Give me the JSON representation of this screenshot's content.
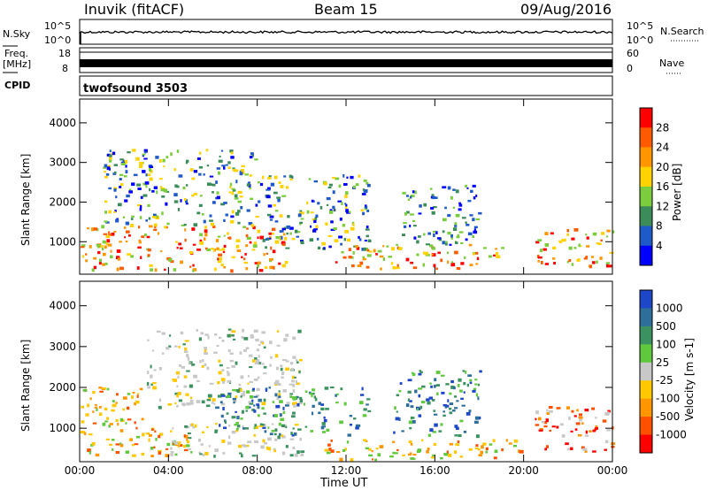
{
  "header": {
    "station": "Inuvik (fitACF)",
    "beam": "Beam 15",
    "date": "09/Aug/2016"
  },
  "strip": {
    "nsky_label": "N.Sky",
    "nsearch_label": "N.Search",
    "freq_label_top": "Freq.",
    "freq_label_unit": "[MHz]",
    "nave_label": "Nave",
    "cpid_label": "CPID",
    "cpid_value": "twofsound 3503",
    "nsky_ticks": [
      "10^5",
      "10^0"
    ],
    "nsearch_ticks": [
      "10^5",
      "10^0"
    ],
    "freq_ticks": [
      "18",
      "8"
    ],
    "nave_ticks": [
      "60",
      "0"
    ]
  },
  "chart_data": [
    {
      "type": "heatmap",
      "name": "power",
      "ylabel": "Slant Range [km]",
      "xlabel": "",
      "y_ticks": [
        1000,
        2000,
        3000,
        4000
      ],
      "ylim": [
        180,
        4600
      ],
      "colorbar_label": "Power [dB]",
      "colorbar_ticks": [
        "28",
        "24",
        "20",
        "16",
        "12",
        "8",
        "4"
      ],
      "colorbar_colors": [
        "#ff0000",
        "#ff5a00",
        "#ff9600",
        "#ffd200",
        "#7ccd3e",
        "#3c8c5a",
        "#1e5ac8",
        "#0000ff"
      ],
      "features": [
        {
          "t0": 0.0,
          "t1": 9.5,
          "r0": 250,
          "r1": 1400,
          "level": "high"
        },
        {
          "t0": 1.0,
          "t1": 8.0,
          "r0": 1400,
          "r1": 3300,
          "level": "mid"
        },
        {
          "t0": 8.0,
          "t1": 13.0,
          "r0": 800,
          "r1": 2700,
          "level": "mid"
        },
        {
          "t0": 11.5,
          "t1": 19.0,
          "r0": 300,
          "r1": 900,
          "level": "high"
        },
        {
          "t0": 14.5,
          "t1": 18.0,
          "r0": 900,
          "r1": 2400,
          "level": "low"
        },
        {
          "t0": 20.5,
          "t1": 24.0,
          "r0": 350,
          "r1": 1300,
          "level": "high"
        }
      ]
    },
    {
      "type": "heatmap",
      "name": "velocity",
      "ylabel": "Slant Range [km]",
      "xlabel": "Time UT",
      "y_ticks": [
        1000,
        2000,
        3000,
        4000
      ],
      "ylim": [
        180,
        4600
      ],
      "x_ticks": [
        "00:00",
        "04:00",
        "08:00",
        "12:00",
        "16:00",
        "20:00",
        "00:00"
      ],
      "colorbar_label": "Velocity [m s-1]",
      "colorbar_ticks": [
        "1000",
        "500",
        "100",
        "25",
        "-25",
        "-100",
        "-500",
        "-1000"
      ],
      "colorbar_colors": [
        "#1e46c8",
        "#2e6e9a",
        "#3c9160",
        "#5fc83c",
        "#c8c8c8",
        "#ffc800",
        "#ff9600",
        "#ff5000",
        "#ff0000"
      ],
      "features": [
        {
          "t0": 0.0,
          "t1": 3.0,
          "r0": 1000,
          "r1": 2000,
          "level": "neg"
        },
        {
          "t0": 0.0,
          "t1": 5.0,
          "r0": 300,
          "r1": 1000,
          "level": "neg"
        },
        {
          "t0": 3.0,
          "t1": 10.0,
          "r0": 1500,
          "r1": 3400,
          "level": "zero"
        },
        {
          "t0": 4.0,
          "t1": 10.0,
          "r0": 300,
          "r1": 1100,
          "level": "zero"
        },
        {
          "t0": 6.0,
          "t1": 13.0,
          "r0": 800,
          "r1": 2000,
          "level": "pos"
        },
        {
          "t0": 11.0,
          "t1": 20.0,
          "r0": 200,
          "r1": 700,
          "level": "neg"
        },
        {
          "t0": 14.0,
          "t1": 18.0,
          "r0": 800,
          "r1": 2400,
          "level": "pos"
        },
        {
          "t0": 20.5,
          "t1": 24.0,
          "r0": 400,
          "r1": 1500,
          "level": "strongneg"
        }
      ]
    }
  ],
  "colors": {
    "grey": "#c8c8c8",
    "red": "#ff0000",
    "blue": "#1e46c8"
  }
}
